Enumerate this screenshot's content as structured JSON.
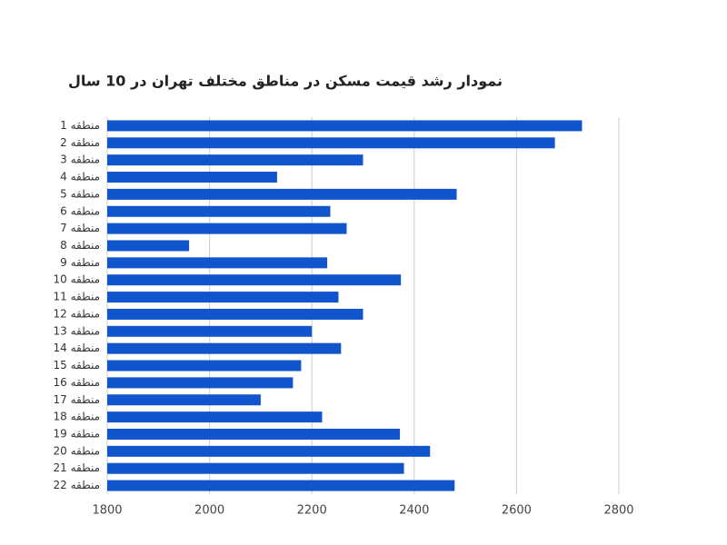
{
  "chart_data": {
    "type": "barh",
    "title": "نمودار رشد قیمت مسکن در مناطق مختلف تهران در 10 سال",
    "categories": [
      "منطقه 1",
      "منطقه 2",
      "منطقه 3",
      "منطقه 4",
      "منطقه 5",
      "منطقه 6",
      "منطقه 7",
      "منطقه 8",
      "منطقه 9",
      "منطقه 10",
      "منطقه 11",
      "منطقه 12",
      "منطقه 13",
      "منطقه 14",
      "منطقه 15",
      "منطقه 16",
      "منطقه 17",
      "منطقه 18",
      "منطقه 19",
      "منطقه 20",
      "منطقه 21",
      "منطقه 22"
    ],
    "values": [
      2728,
      2675,
      2300,
      2132,
      2483,
      2236,
      2268,
      1960,
      2230,
      2374,
      2252,
      2300,
      2200,
      2257,
      2179,
      2163,
      2100,
      2220,
      2372,
      2431,
      2380,
      2479
    ],
    "color": "#1155cc",
    "xlim": [
      1800,
      2800
    ],
    "xticks": [
      1800,
      2000,
      2200,
      2400,
      2600,
      2800
    ],
    "grid": true
  }
}
